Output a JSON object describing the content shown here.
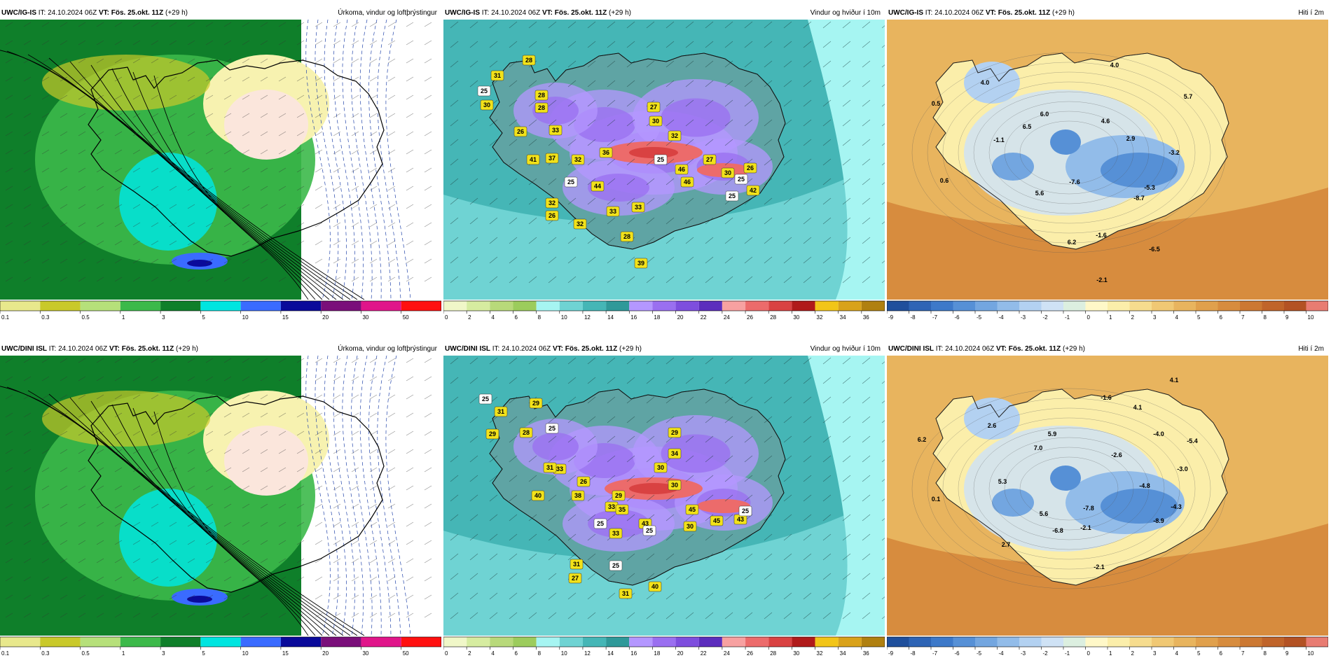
{
  "panels": [
    {
      "id": "p1",
      "model": "UWC/IG-IS",
      "it_label": "IT:",
      "it": "24.10.2024 06Z",
      "vt_label": "VT:",
      "vt": "Fös. 25.okt. 11Z",
      "lead": "(+29 h)",
      "title": "Úrkoma, vindur og loftþrýstingur",
      "kind": "precip",
      "colorbar": {
        "ticks": [
          "0.1",
          "0.3",
          "0.5",
          "1",
          "3",
          "5",
          "10",
          "15",
          "20",
          "30",
          "50"
        ],
        "colors": [
          "#e8e88c",
          "#c9c92a",
          "#b6e07a",
          "#3cb94a",
          "#0f7f2a",
          "#00e5e0",
          "#3a6bff",
          "#0a0a9a",
          "#7a0f7a",
          "#e0158a",
          "#ff1010"
        ]
      },
      "labels": []
    },
    {
      "id": "p2",
      "model": "UWC/IG-IS",
      "it_label": "IT:",
      "it": "24.10.2024 06Z",
      "vt_label": "VT:",
      "vt": "Fös. 25.okt. 11Z",
      "lead": "(+29 h)",
      "title": "Vindur og hviður í 10m",
      "kind": "wind",
      "colorbar": {
        "ticks": [
          "0",
          "2",
          "4",
          "6",
          "8",
          "10",
          "12",
          "14",
          "16",
          "18",
          "20",
          "22",
          "24",
          "26",
          "28",
          "30",
          "32",
          "34",
          "36"
        ],
        "colors": [
          "#f0f7c8",
          "#d6eca0",
          "#b8d97a",
          "#9ccc5c",
          "#a6f5f2",
          "#6fd3d3",
          "#45b6b6",
          "#2f9999",
          "#b497ff",
          "#9a6ff0",
          "#7e4ede",
          "#5c2dbd",
          "#f7a1a1",
          "#ec6b6b",
          "#d94242",
          "#b01a1a",
          "#f2c518",
          "#d9a21a",
          "#b08010"
        ]
      },
      "labels": [
        "28",
        "31",
        "25",
        "30",
        "28",
        "28",
        "26",
        "33",
        "41",
        "37",
        "32",
        "36",
        "25",
        "44",
        "32",
        "33",
        "32",
        "26",
        "28",
        "33",
        "39",
        "25",
        "27",
        "30",
        "32",
        "46",
        "46",
        "27",
        "42",
        "25",
        "26",
        "30",
        "25"
      ]
    },
    {
      "id": "p3",
      "model": "UWC/IG-IS",
      "it_label": "IT:",
      "it": "24.10.2024 06Z",
      "vt_label": "VT:",
      "vt": "Fös. 25.okt. 11Z",
      "lead": "(+29 h)",
      "title": "Hiti í 2m",
      "kind": "temp",
      "colorbar": {
        "ticks": [
          "-9",
          "-8",
          "-7",
          "-6",
          "-5",
          "-4",
          "-3",
          "-2",
          "-1",
          "0",
          "1",
          "2",
          "3",
          "4",
          "5",
          "6",
          "7",
          "8",
          "9",
          "10"
        ],
        "colors": [
          "#1f4f9c",
          "#2e64b5",
          "#3d79c9",
          "#5690d6",
          "#73a6e0",
          "#92bce9",
          "#b3d1f1",
          "#cfe2f5",
          "#dcefe0",
          "#fff8c8",
          "#fbeeaa",
          "#f6dc8e",
          "#f0c874",
          "#e8b45e",
          "#e0a04c",
          "#d78c3e",
          "#cc7832",
          "#c0642a",
          "#b35224",
          "#e87c72"
        ]
      },
      "labels": [
        "4.0",
        "4.0",
        "0.5",
        "5.7",
        "6.0",
        "4.6",
        "6.5",
        "2.9",
        "-1.1",
        "-3.2",
        "0.6",
        "-7.6",
        "-5.3",
        "5.6",
        "-8.7",
        "-1.6",
        "6.2",
        "-6.5",
        "-2.1"
      ]
    },
    {
      "id": "p4",
      "model": "UWC/DINI ISL",
      "it_label": "IT:",
      "it": "24.10.2024 06Z",
      "vt_label": "VT:",
      "vt": "Fös. 25.okt. 11Z",
      "lead": "(+29 h)",
      "title": "Úrkoma, vindur og loftþrýstingur",
      "kind": "precip",
      "colorbar": {
        "ticks": [
          "0.1",
          "0.3",
          "0.5",
          "1",
          "3",
          "5",
          "10",
          "15",
          "20",
          "30",
          "50"
        ],
        "colors": [
          "#e8e88c",
          "#c9c92a",
          "#b6e07a",
          "#3cb94a",
          "#0f7f2a",
          "#00e5e0",
          "#3a6bff",
          "#0a0a9a",
          "#7a0f7a",
          "#e0158a",
          "#ff1010"
        ]
      },
      "labels": []
    },
    {
      "id": "p5",
      "model": "UWC/DINI ISL",
      "it_label": "IT:",
      "it": "24.10.2024 06Z",
      "vt_label": "VT:",
      "vt": "Fös. 25.okt. 11Z",
      "lead": "(+29 h)",
      "title": "Vindur og hviður í 10m",
      "kind": "wind",
      "colorbar": {
        "ticks": [
          "0",
          "2",
          "4",
          "6",
          "8",
          "10",
          "12",
          "14",
          "16",
          "18",
          "20",
          "22",
          "24",
          "26",
          "28",
          "30",
          "32",
          "34",
          "36"
        ],
        "colors": [
          "#f0f7c8",
          "#d6eca0",
          "#b8d97a",
          "#9ccc5c",
          "#a6f5f2",
          "#6fd3d3",
          "#45b6b6",
          "#2f9999",
          "#b497ff",
          "#9a6ff0",
          "#7e4ede",
          "#5c2dbd",
          "#f7a1a1",
          "#ec6b6b",
          "#d94242",
          "#b01a1a",
          "#f2c518",
          "#d9a21a",
          "#b08010"
        ]
      },
      "labels": [
        "25",
        "31",
        "29",
        "29",
        "28",
        "25",
        "33",
        "26",
        "31",
        "29",
        "34",
        "29",
        "30",
        "40",
        "38",
        "33",
        "35",
        "45",
        "30",
        "45",
        "43",
        "25",
        "43",
        "33",
        "25",
        "31",
        "27",
        "31",
        "40",
        "30",
        "25",
        "25"
      ]
    },
    {
      "id": "p6",
      "model": "UWC/DINI ISL",
      "it_label": "IT:",
      "it": "24.10.2024 06Z",
      "vt_label": "VT:",
      "vt": "Fös. 25.okt. 11Z",
      "lead": "(+29 h)",
      "title": "Hiti í 2m",
      "kind": "temp",
      "colorbar": {
        "ticks": [
          "-9",
          "-8",
          "-7",
          "-6",
          "-5",
          "-4",
          "-3",
          "-2",
          "-1",
          "0",
          "1",
          "2",
          "3",
          "4",
          "5",
          "6",
          "7",
          "8",
          "9",
          "10"
        ],
        "colors": [
          "#1f4f9c",
          "#2e64b5",
          "#3d79c9",
          "#5690d6",
          "#73a6e0",
          "#92bce9",
          "#b3d1f1",
          "#cfe2f5",
          "#dcefe0",
          "#fff8c8",
          "#fbeeaa",
          "#f6dc8e",
          "#f0c874",
          "#e8b45e",
          "#e0a04c",
          "#d78c3e",
          "#cc7832",
          "#c0642a",
          "#b35224",
          "#e87c72"
        ]
      },
      "labels": [
        "4.1",
        "-1.6",
        "4.1",
        "2.6",
        "5.9",
        "-4.0",
        "6.2",
        "7.0",
        "-2.6",
        "-5.4",
        "-3.0",
        "5.3",
        "-4.8",
        "0.1",
        "-7.8",
        "-4.3",
        "5.6",
        "-2.1",
        "-8.9",
        "-6.8",
        "2.7",
        "-2.1"
      ]
    }
  ]
}
